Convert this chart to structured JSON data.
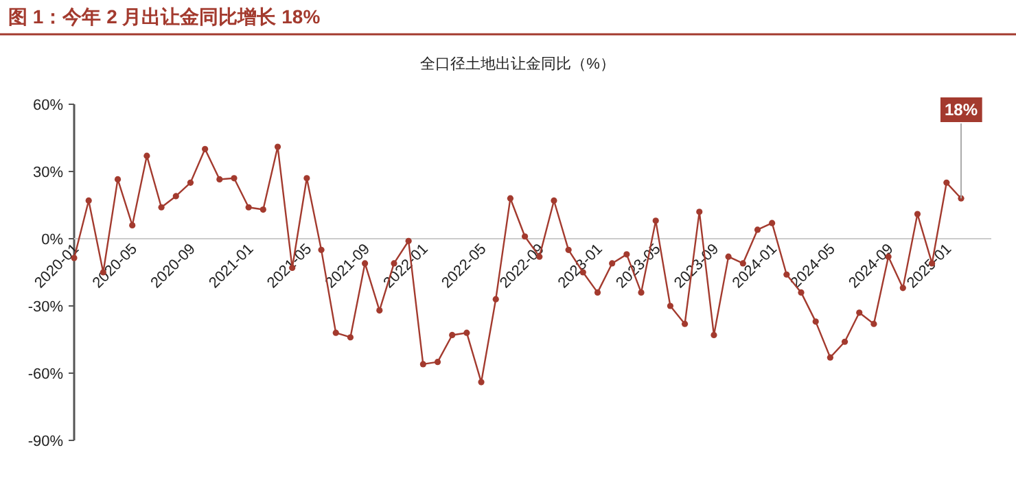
{
  "chart_data": {
    "type": "line",
    "title": "图 1：今年 2 月出让金同比增长 18%",
    "subtitle": "全口径土地出让金同比（%）",
    "categories": [
      "2020-01",
      null,
      null,
      null,
      "2020-05",
      null,
      null,
      null,
      "2020-09",
      null,
      null,
      null,
      "2021-01",
      null,
      null,
      null,
      "2021-05",
      null,
      null,
      null,
      "2021-09",
      null,
      null,
      null,
      "2022-01",
      null,
      null,
      null,
      "2022-05",
      null,
      null,
      null,
      "2022-09",
      null,
      null,
      null,
      "2023-01",
      null,
      null,
      null,
      "2023-05",
      null,
      null,
      null,
      "2023-09",
      null,
      null,
      null,
      "2024-01",
      null,
      null,
      null,
      "2024-05",
      null,
      null,
      null,
      "2024-09",
      null,
      null,
      null,
      "2025-01",
      null
    ],
    "series": [
      {
        "color": "#a33a2e",
        "marker": "circle",
        "values": [
          -8.6,
          17,
          -15,
          26.5,
          6,
          37,
          14,
          19,
          25,
          40,
          26.5,
          27,
          14,
          13,
          41,
          -13,
          27,
          -5,
          -42,
          -44,
          -11,
          -32,
          -11,
          -1,
          -56,
          -55,
          -43,
          -42,
          -64,
          -27,
          18,
          1,
          -8,
          17,
          -5,
          -15,
          -24,
          -11,
          -7,
          -24,
          8,
          -30,
          -38,
          12,
          -43,
          -8,
          -11,
          4,
          7,
          -16,
          -24,
          -37,
          -53,
          -46,
          -33,
          -38,
          -8,
          -22,
          11,
          -11,
          25,
          18
        ],
        "value_labels": [
          null,
          null,
          null,
          null,
          null,
          null,
          null,
          null,
          null,
          null,
          null,
          null,
          null,
          null,
          null,
          null,
          null,
          null,
          null,
          null,
          null,
          null,
          null,
          null,
          null,
          null,
          null,
          null,
          null,
          null,
          null,
          null,
          null,
          null,
          null,
          null,
          null,
          null,
          null,
          null,
          null,
          null,
          null,
          null,
          null,
          null,
          null,
          null,
          null,
          null,
          null,
          null,
          null,
          null,
          null,
          null,
          null,
          null,
          null,
          null,
          null,
          "18%"
        ]
      }
    ],
    "ylim": [
      -90,
      60
    ],
    "yticks": [
      {
        "value": -90,
        "label": "-90%"
      },
      {
        "value": -60,
        "label": "-60%"
      },
      {
        "value": -30,
        "label": "-30%"
      },
      {
        "value": 0,
        "label": "0%"
      },
      {
        "value": 30,
        "label": "30%"
      },
      {
        "value": 60,
        "label": "60%"
      }
    ],
    "line_style": "solid"
  }
}
